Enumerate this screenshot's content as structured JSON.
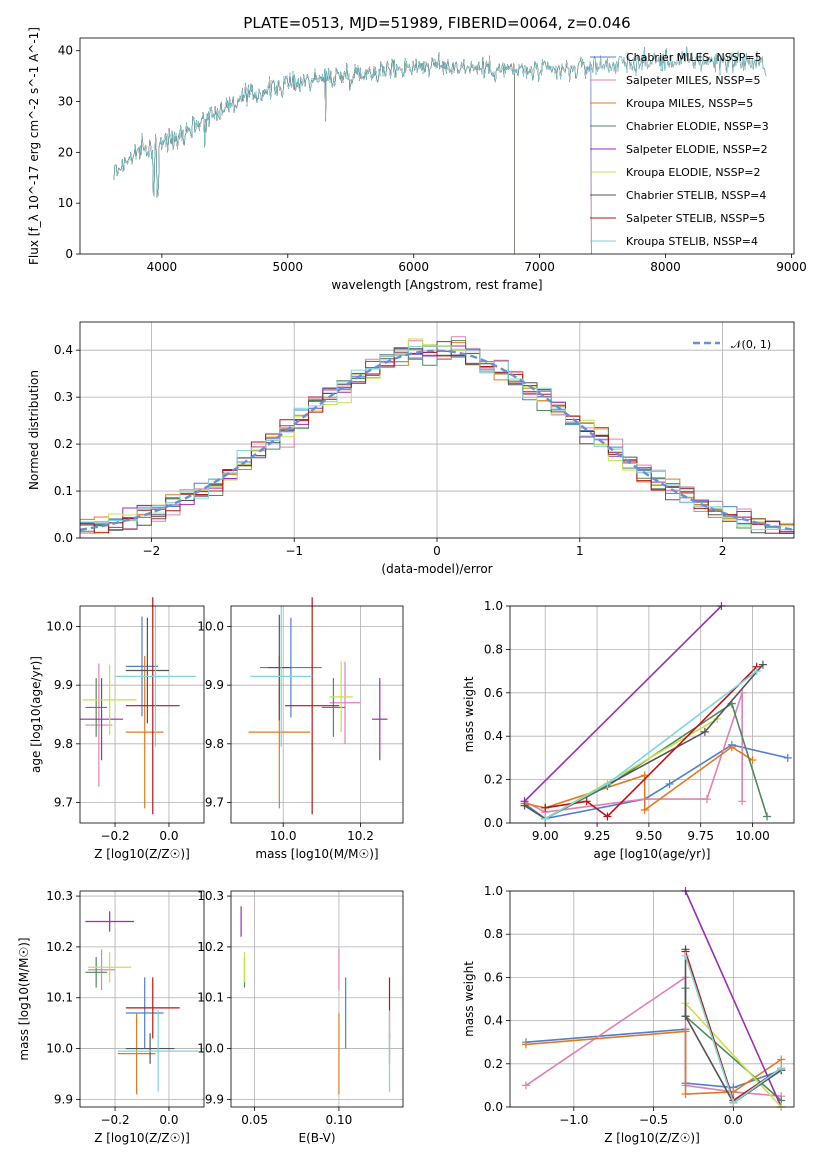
{
  "page_title": "PLATE=0513, MJD=51989, FIBERID=0064, z=0.046",
  "colors": {
    "Chabrier MILES": "#4f7fcf",
    "Salpeter MILES": "#e27fb4",
    "Kroupa MILES": "#e07b24",
    "Chabrier ELODIE": "#4f8a5b",
    "Salpeter ELODIE": "#9a2fb2",
    "Kroupa ELODIE": "#c9e04d",
    "Chabrier STELIB": "#555555",
    "Salpeter STELIB": "#b81414",
    "Kroupa STELIB": "#7dd6d9"
  },
  "chart_data": [
    {
      "id": "spectrum",
      "type": "line",
      "title": "PLATE=0513, MJD=51989, FIBERID=0064, z=0.046",
      "xlabel": "wavelength [Angstrom, rest frame]",
      "ylabel": "Flux [f_λ 10^-17 erg cm^-2 s^-1 A^-1]",
      "xlim": [
        3350,
        9020
      ],
      "ylim": [
        0,
        42.5
      ],
      "xticks": [
        "4000",
        "5000",
        "6000",
        "7000",
        "8000",
        "9000"
      ],
      "yticks": [
        "0",
        "10",
        "20",
        "30",
        "40"
      ],
      "legend_position": "right",
      "legend": [
        "Chabrier MILES, NSSP=5",
        "Salpeter MILES, NSSP=5",
        "Kroupa MILES, NSSP=5",
        "Chabrier ELODIE, NSSP=3",
        "Salpeter ELODIE, NSSP=2",
        "Kroupa ELODIE, NSSP=2",
        "Chabrier STELIB, NSSP=4",
        "Salpeter STELIB, NSSP=5",
        "Kroupa STELIB, NSSP=4"
      ],
      "continuum": {
        "x": [
          3620,
          3800,
          3950,
          4100,
          4300,
          4500,
          4800,
          5100,
          5400,
          5700,
          6000,
          6300,
          6600,
          6900,
          7200,
          7400,
          7700,
          8000,
          8300,
          8600,
          8800
        ],
        "y": [
          16,
          20,
          21,
          23,
          26,
          29,
          32,
          34,
          35,
          36,
          37,
          37,
          36.5,
          36,
          36,
          37,
          37.5,
          38,
          38,
          38,
          37
        ]
      },
      "series_ends": {
        "Kroupa ELODIE": 6800,
        "Salpeter ELODIE": 6800,
        "Chabrier ELODIE": 6800,
        "Kroupa MILES": 7410,
        "Salpeter MILES": 7410,
        "Chabrier MILES": 7410
      }
    },
    {
      "id": "residuals",
      "type": "step",
      "xlabel": "(data-model)/error",
      "ylabel": "Normed distribution",
      "xlim": [
        -2.5,
        2.5
      ],
      "ylim": [
        0,
        0.46
      ],
      "xticks": [
        "−2",
        "−1",
        "0",
        "1",
        "2"
      ],
      "yticks": [
        "0.0",
        "0.1",
        "0.2",
        "0.3",
        "0.4"
      ],
      "gaussian_label": "𝒩(0, 1)",
      "bin_width": 0.1,
      "legend_position": "top-right"
    },
    {
      "id": "age_vs_Z",
      "type": "errorbar",
      "xlabel": "Z [log10(Z/Z☉)]",
      "ylabel": "age [log10(age/yr)]",
      "xlim": [
        -0.33,
        0.13
      ],
      "ylim": [
        9.665,
        10.035
      ],
      "xticks": [
        "−0.2",
        "0.0"
      ],
      "yticks": [
        "9.7",
        "9.8",
        "9.9",
        "10.0"
      ],
      "points": [
        {
          "model": "Chabrier MILES",
          "x": -0.1,
          "xerr": 0.06,
          "y": 9.932,
          "yerr": 0.085
        },
        {
          "model": "Salpeter MILES",
          "x": -0.26,
          "xerr": 0.05,
          "y": 9.832,
          "yerr": 0.105
        },
        {
          "model": "Kroupa MILES",
          "x": -0.09,
          "xerr": 0.07,
          "y": 9.82,
          "yerr": 0.13
        },
        {
          "model": "Chabrier ELODIE",
          "x": -0.27,
          "xerr": 0.04,
          "y": 9.862,
          "yerr": 0.05
        },
        {
          "model": "Salpeter ELODIE",
          "x": -0.25,
          "xerr": 0.08,
          "y": 9.842,
          "yerr": 0.07
        },
        {
          "model": "Kroupa ELODIE",
          "x": -0.22,
          "xerr": 0.1,
          "y": 9.875,
          "yerr": 0.06
        },
        {
          "model": "Chabrier STELIB",
          "x": -0.08,
          "xerr": 0.08,
          "y": 9.925,
          "yerr": 0.09
        },
        {
          "model": "Salpeter STELIB",
          "x": -0.06,
          "xerr": 0.1,
          "y": 9.865,
          "yerr": 0.185
        },
        {
          "model": "Kroupa STELIB",
          "x": -0.05,
          "xerr": 0.15,
          "y": 9.915,
          "yerr": 0.12
        }
      ]
    },
    {
      "id": "age_vs_mass",
      "type": "errorbar",
      "xlabel": "mass [log10(M/M☉)]",
      "ylabel": "",
      "xlim": [
        9.865,
        10.31
      ],
      "ylim": [
        9.665,
        10.035
      ],
      "xticks": [
        "10.0",
        "10.2"
      ],
      "yticks": [
        "9.7",
        "9.8",
        "9.9",
        "10.0"
      ],
      "points": [
        {
          "model": "Chabrier MILES",
          "x": 10.02,
          "xerr": 0.08,
          "y": 9.93,
          "yerr": 0.085
        },
        {
          "model": "Salpeter MILES",
          "x": 10.16,
          "xerr": 0.04,
          "y": 9.87,
          "yerr": 0.07
        },
        {
          "model": "Kroupa MILES",
          "x": 9.99,
          "xerr": 0.08,
          "y": 9.82,
          "yerr": 0.13
        },
        {
          "model": "Chabrier ELODIE",
          "x": 10.13,
          "xerr": 0.03,
          "y": 9.862,
          "yerr": 0.05
        },
        {
          "model": "Salpeter ELODIE",
          "x": 10.25,
          "xerr": 0.02,
          "y": 9.842,
          "yerr": 0.07
        },
        {
          "model": "Kroupa ELODIE",
          "x": 10.15,
          "xerr": 0.03,
          "y": 9.88,
          "yerr": 0.06
        },
        {
          "model": "Chabrier STELIB",
          "x": 9.99,
          "xerr": 0.03,
          "y": 9.93,
          "yerr": 0.09
        },
        {
          "model": "Salpeter STELIB",
          "x": 10.075,
          "xerr": 0.07,
          "y": 9.865,
          "yerr": 0.185
        },
        {
          "model": "Kroupa STELIB",
          "x": 9.995,
          "xerr": 0.08,
          "y": 9.915,
          "yerr": 0.12
        }
      ]
    },
    {
      "id": "weight_vs_age",
      "type": "line",
      "xlabel": "age [log10(age/yr)]",
      "ylabel": "mass weight",
      "xlim": [
        8.83,
        10.2
      ],
      "ylim": [
        0,
        1
      ],
      "xticks": [
        "9.00",
        "9.25",
        "9.50",
        "9.75",
        "10.00"
      ],
      "yticks": [
        "0.0",
        "0.2",
        "0.4",
        "0.6",
        "0.8",
        "1.0"
      ],
      "series": [
        {
          "name": "Chabrier MILES",
          "x": [
            8.9,
            9.0,
            9.48,
            9.6,
            9.9,
            10.17
          ],
          "y": [
            0.09,
            0.02,
            0.11,
            0.18,
            0.36,
            0.3
          ]
        },
        {
          "name": "Salpeter MILES",
          "x": [
            8.9,
            9.0,
            9.48,
            9.78,
            9.95,
            9.95
          ],
          "y": [
            0.1,
            0.05,
            0.11,
            0.11,
            0.6,
            0.1
          ]
        },
        {
          "name": "Kroupa MILES",
          "x": [
            8.9,
            9.0,
            9.48,
            9.48,
            9.9,
            10.0
          ],
          "y": [
            0.09,
            0.07,
            0.22,
            0.06,
            0.35,
            0.29
          ]
        },
        {
          "name": "Chabrier ELODIE",
          "x": [
            9.0,
            9.3,
            9.9,
            10.07
          ],
          "y": [
            0.02,
            0.17,
            0.55,
            0.03
          ]
        },
        {
          "name": "Salpeter ELODIE",
          "x": [
            8.9,
            9.85
          ],
          "y": [
            0.1,
            1.0
          ]
        },
        {
          "name": "Kroupa ELODIE",
          "x": [
            9.0,
            9.83
          ],
          "y": [
            0.02,
            0.48
          ]
        },
        {
          "name": "Chabrier STELIB",
          "x": [
            8.9,
            9.0,
            9.77,
            10.05
          ],
          "y": [
            0.08,
            0.02,
            0.42,
            0.73
          ]
        },
        {
          "name": "Salpeter STELIB",
          "x": [
            9.0,
            9.2,
            9.3,
            10.02
          ],
          "y": [
            0.07,
            0.1,
            0.03,
            0.72
          ]
        },
        {
          "name": "Kroupa STELIB",
          "x": [
            9.0,
            9.3,
            10.02
          ],
          "y": [
            0.02,
            0.18,
            0.7
          ]
        }
      ]
    },
    {
      "id": "mass_vs_Z",
      "type": "errorbar",
      "xlabel": "Z [log10(Z/Z☉)]",
      "ylabel": "mass [log10(M/M☉)]",
      "xlim": [
        -0.33,
        0.13
      ],
      "ylim": [
        9.885,
        10.31
      ],
      "xticks": [
        "−0.2",
        "0.0"
      ],
      "yticks": [
        "9.9",
        "10.0",
        "10.1",
        "10.2",
        "10.3"
      ],
      "points": [
        {
          "model": "Chabrier MILES",
          "x": -0.09,
          "xerr": 0.07,
          "y": 10.07,
          "yerr": 0.07
        },
        {
          "model": "Salpeter MILES",
          "x": -0.25,
          "xerr": 0.05,
          "y": 10.155,
          "yerr": 0.04
        },
        {
          "model": "Kroupa MILES",
          "x": -0.12,
          "xerr": 0.07,
          "y": 9.99,
          "yerr": 0.08
        },
        {
          "model": "Chabrier ELODIE",
          "x": -0.27,
          "xerr": 0.04,
          "y": 10.15,
          "yerr": 0.03
        },
        {
          "model": "Salpeter ELODIE",
          "x": -0.22,
          "xerr": 0.09,
          "y": 10.25,
          "yerr": 0.02
        },
        {
          "model": "Kroupa ELODIE",
          "x": -0.22,
          "xerr": 0.08,
          "y": 10.16,
          "yerr": 0.03
        },
        {
          "model": "Chabrier STELIB",
          "x": -0.07,
          "xerr": 0.09,
          "y": 10.0,
          "yerr": 0.03
        },
        {
          "model": "Salpeter STELIB",
          "x": -0.06,
          "xerr": 0.1,
          "y": 10.08,
          "yerr": 0.06
        },
        {
          "model": "Kroupa STELIB",
          "x": -0.04,
          "xerr": 0.15,
          "y": 9.995,
          "yerr": 0.08
        }
      ]
    },
    {
      "id": "mass_vs_ebv",
      "type": "errorbar",
      "xlabel": "E(B-V)",
      "ylabel": "",
      "xlim": [
        0.036,
        0.138
      ],
      "ylim": [
        9.885,
        10.31
      ],
      "xticks": [
        "0.05",
        "0.10"
      ],
      "yticks": [
        "9.9",
        "10.0",
        "10.1",
        "10.2",
        "10.3"
      ],
      "points": [
        {
          "model": "Chabrier MILES",
          "x": 0.104,
          "xerr": 0,
          "y": 10.07,
          "yerr": 0.07
        },
        {
          "model": "Salpeter MILES",
          "x": 0.1,
          "xerr": 0,
          "y": 10.155,
          "yerr": 0.04
        },
        {
          "model": "Kroupa MILES",
          "x": 0.1,
          "xerr": 0,
          "y": 9.99,
          "yerr": 0.08
        },
        {
          "model": "Chabrier ELODIE",
          "x": 0.044,
          "xerr": 0,
          "y": 10.15,
          "yerr": 0.03
        },
        {
          "model": "Salpeter ELODIE",
          "x": 0.042,
          "xerr": 0,
          "y": 10.25,
          "yerr": 0.03
        },
        {
          "model": "Kroupa ELODIE",
          "x": 0.044,
          "xerr": 0,
          "y": 10.16,
          "yerr": 0.03
        },
        {
          "model": "Chabrier STELIB",
          "x": 0.13,
          "xerr": 0,
          "y": 10.0,
          "yerr": 0.03
        },
        {
          "model": "Salpeter STELIB",
          "x": 0.13,
          "xerr": 0,
          "y": 10.08,
          "yerr": 0.06
        },
        {
          "model": "Kroupa STELIB",
          "x": 0.13,
          "xerr": 0,
          "y": 9.995,
          "yerr": 0.08
        }
      ]
    },
    {
      "id": "weight_vs_Z",
      "type": "line",
      "xlabel": "Z [log10(Z/Z☉)]",
      "ylabel": "mass weight",
      "xlim": [
        -1.4,
        0.38
      ],
      "ylim": [
        0,
        1
      ],
      "xticks": [
        "−1.0",
        "−0.5",
        "0.0"
      ],
      "yticks": [
        "0.0",
        "0.2",
        "0.4",
        "0.6",
        "0.8",
        "1.0"
      ],
      "series": [
        {
          "name": "Chabrier MILES",
          "x": [
            -1.3,
            -0.3,
            -0.3,
            0.0,
            0.3
          ],
          "y": [
            0.3,
            0.36,
            0.11,
            0.09,
            0.17
          ]
        },
        {
          "name": "Salpeter MILES",
          "x": [
            -1.3,
            -0.3,
            -0.3,
            0.0,
            0.3
          ],
          "y": [
            0.1,
            0.6,
            0.1,
            0.07,
            0.05
          ]
        },
        {
          "name": "Kroupa MILES",
          "x": [
            -1.3,
            -0.3,
            -0.3,
            0.0,
            0.3
          ],
          "y": [
            0.29,
            0.35,
            0.06,
            0.07,
            0.22
          ]
        },
        {
          "name": "Chabrier ELODIE",
          "x": [
            -0.3,
            -0.3,
            0.3
          ],
          "y": [
            0.55,
            0.42,
            0.03
          ]
        },
        {
          "name": "Salpeter ELODIE",
          "x": [
            -0.3,
            0.3
          ],
          "y": [
            1.0,
            0.0
          ]
        },
        {
          "name": "Kroupa ELODIE",
          "x": [
            -0.3,
            0.3
          ],
          "y": [
            0.48,
            0.0
          ]
        },
        {
          "name": "Chabrier STELIB",
          "x": [
            -0.3,
            -0.3,
            0.0,
            0.3
          ],
          "y": [
            0.73,
            0.42,
            0.02,
            0.17
          ]
        },
        {
          "name": "Salpeter STELIB",
          "x": [
            -0.3,
            0.0,
            0.3
          ],
          "y": [
            0.72,
            0.03,
            0.18
          ]
        },
        {
          "name": "Kroupa STELIB",
          "x": [
            -0.3,
            0.0,
            0.3
          ],
          "y": [
            0.7,
            0.02,
            0.18
          ]
        }
      ]
    }
  ]
}
